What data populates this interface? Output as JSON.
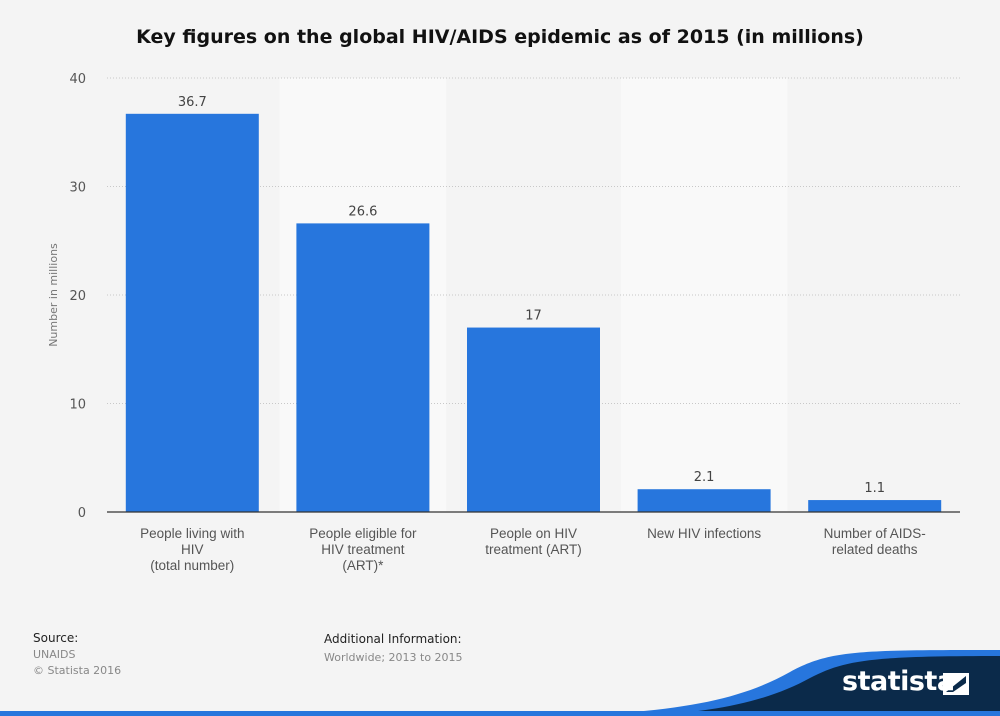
{
  "chart_data": {
    "type": "bar",
    "title": "Key figures on the global HIV/AIDS epidemic as of 2015 (in millions)",
    "xlabel": "",
    "ylabel": "Number in millions",
    "ylim": [
      0,
      40
    ],
    "yticks": [
      0,
      10,
      20,
      30,
      40
    ],
    "grid": true,
    "categories": [
      [
        "People living with",
        "HIV",
        "(total number)"
      ],
      [
        "People eligible for",
        "HIV treatment",
        "(ART)*"
      ],
      [
        "People on HIV",
        "treatment (ART)"
      ],
      [
        "New HIV infections"
      ],
      [
        "Number of AIDS-",
        "related deaths"
      ]
    ],
    "values": [
      36.7,
      26.6,
      17,
      2.1,
      1.1
    ],
    "value_labels": [
      "36.7",
      "26.6",
      "17",
      "2.1",
      "1.1"
    ],
    "bar_color": "#2776dd"
  },
  "footer": {
    "source_label": "Source:",
    "source_lines": [
      "UNAIDS",
      "© Statista 2016"
    ],
    "info_label": "Additional Information:",
    "info_text": "Worldwide; 2013 to 2015"
  },
  "logo": {
    "text": "statista",
    "brand_color": "#0b2a4a",
    "accent_color": "#2776dd"
  }
}
